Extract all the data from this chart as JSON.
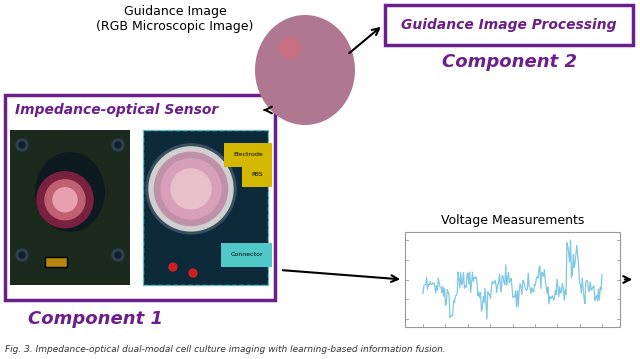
{
  "guidance_image_text": "Guidance Image\n(RGB Microscopic Image)",
  "guidance_processing_text": "Guidance Image Processing",
  "component2_text": "Component 2",
  "sensor_box_text": "Impedance-optical Sensor",
  "component1_text": "Component 1",
  "voltage_text": "Voltage Measurements",
  "box_color_purple": "#6B1F8A",
  "text_color_purple": "#6B1F8A",
  "arrow_color": "#000000",
  "background_color": "#ffffff",
  "voltage_line_color": "#7ec8e3",
  "fig_caption": "Fig. 3. Impedance-optical dual-modal cell culture imaging with learning-based information fusion."
}
